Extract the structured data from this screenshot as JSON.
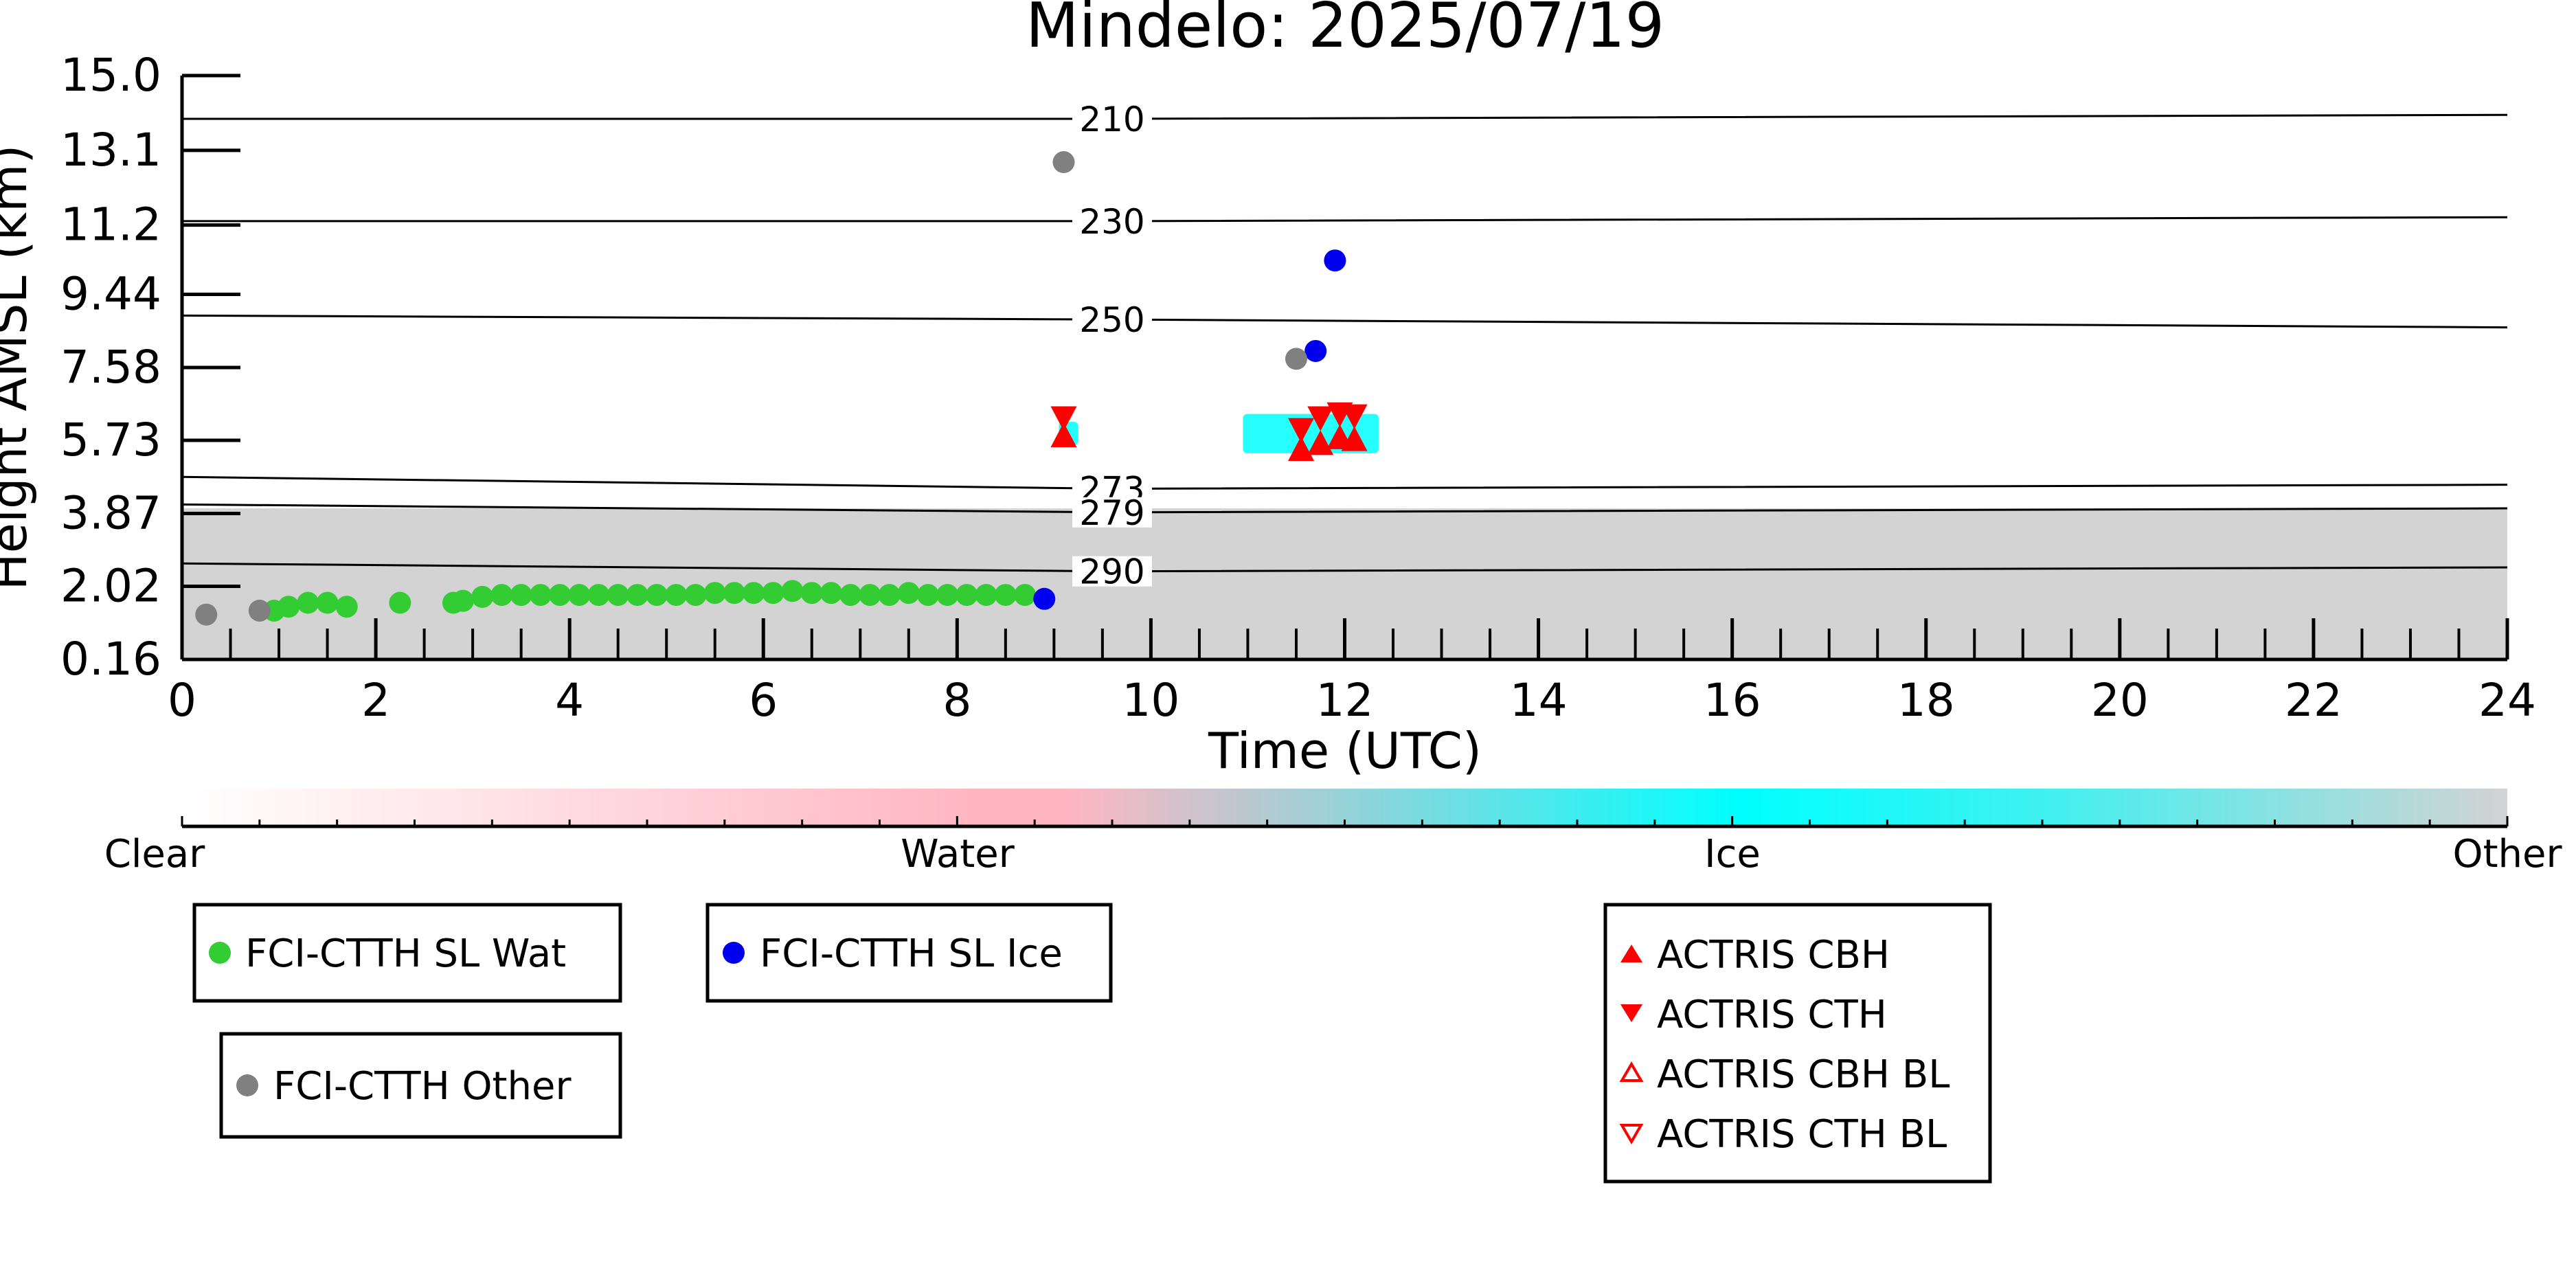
{
  "chart_data": {
    "type": "scatter",
    "title": "Mindelo: 2025/07/19",
    "xlabel": "Time (UTC)",
    "ylabel": "Height AMSL (km)",
    "xlim": [
      0,
      24
    ],
    "ylim": [
      0.16,
      15.0
    ],
    "x_ticks": [
      0,
      2,
      4,
      6,
      8,
      10,
      12,
      14,
      16,
      18,
      20,
      22,
      24
    ],
    "y_ticks": [
      "0.16",
      "2.02",
      "3.87",
      "5.73",
      "7.58",
      "9.44",
      "11.2",
      "13.1",
      "15.0"
    ],
    "y_tick_values": [
      0.16,
      2.02,
      3.87,
      5.73,
      7.58,
      9.44,
      11.2,
      13.1,
      15.0
    ],
    "grid": false,
    "background": {
      "description": "cloud classification curtain",
      "other_top_km": 4.0,
      "color_other": "#d3d3d3",
      "ice_patches": [
        {
          "x0": 9.05,
          "x1": 9.25,
          "y0": 5.6,
          "y1": 6.2
        },
        {
          "x0": 10.95,
          "x1": 12.35,
          "y0": 5.4,
          "y1": 6.4
        }
      ]
    },
    "isotherms": [
      {
        "label": "210",
        "y": [
          13.9,
          13.9,
          14.0
        ]
      },
      {
        "label": "230",
        "y": [
          11.3,
          11.3,
          11.4
        ]
      },
      {
        "label": "250",
        "y": [
          8.9,
          8.8,
          8.6
        ]
      },
      {
        "label": "273",
        "y": [
          4.8,
          4.5,
          4.6
        ]
      },
      {
        "label": "279",
        "y": [
          4.1,
          3.9,
          4.0
        ]
      },
      {
        "label": "290",
        "y": [
          2.6,
          2.4,
          2.5
        ]
      }
    ],
    "isotherm_x": [
      0,
      9.6,
      24
    ],
    "series": [
      {
        "name": "FCI-CTTH SL Wat",
        "color": "#33cc33",
        "marker": "circle",
        "x": [
          0.95,
          1.1,
          1.3,
          1.5,
          1.7,
          2.25,
          2.8,
          2.9,
          3.1,
          3.3,
          3.5,
          3.7,
          3.9,
          4.1,
          4.3,
          4.5,
          4.7,
          4.9,
          5.1,
          5.3,
          5.5,
          5.7,
          5.9,
          6.1,
          6.3,
          6.5,
          6.7,
          6.9,
          7.1,
          7.3,
          7.5,
          7.7,
          7.9,
          8.1,
          8.3,
          8.5,
          8.7
        ],
        "y": [
          1.4,
          1.5,
          1.6,
          1.6,
          1.5,
          1.6,
          1.6,
          1.65,
          1.75,
          1.8,
          1.8,
          1.8,
          1.8,
          1.8,
          1.8,
          1.8,
          1.8,
          1.8,
          1.8,
          1.8,
          1.85,
          1.85,
          1.85,
          1.85,
          1.9,
          1.85,
          1.85,
          1.8,
          1.8,
          1.8,
          1.85,
          1.8,
          1.8,
          1.8,
          1.8,
          1.8,
          1.8
        ]
      },
      {
        "name": "FCI-CTTH SL Ice",
        "color": "#0000ee",
        "marker": "circle",
        "x": [
          8.9,
          11.7,
          11.9
        ],
        "y": [
          1.7,
          8.0,
          10.3
        ]
      },
      {
        "name": "FCI-CTTH Other",
        "color": "#808080",
        "marker": "circle",
        "x": [
          0.25,
          0.8,
          9.1,
          11.5
        ],
        "y": [
          1.3,
          1.4,
          12.8,
          7.8
        ]
      },
      {
        "name": "ACTRIS CBH",
        "color": "#ff0000",
        "marker": "triangle-up-filled",
        "x": [
          9.1,
          11.55,
          11.75,
          11.95,
          12.1
        ],
        "y": [
          5.8,
          5.45,
          5.6,
          5.75,
          5.7
        ]
      },
      {
        "name": "ACTRIS CTH",
        "color": "#ff0000",
        "marker": "triangle-down-filled",
        "x": [
          9.1,
          11.55,
          11.75,
          11.95,
          12.1
        ],
        "y": [
          6.35,
          6.05,
          6.35,
          6.45,
          6.4
        ]
      },
      {
        "name": "ACTRIS CBH BL",
        "color": "#ff0000",
        "marker": "triangle-up-open",
        "x": [],
        "y": []
      },
      {
        "name": "ACTRIS CTH BL",
        "color": "#ff0000",
        "marker": "triangle-down-open",
        "x": [],
        "y": []
      }
    ],
    "colorbar": {
      "labels": [
        "Clear",
        "Water",
        "Ice",
        "Other"
      ],
      "stops": [
        "#ffffff",
        "#ffb6c1",
        "#00ffff",
        "#d3d3d3"
      ]
    }
  }
}
